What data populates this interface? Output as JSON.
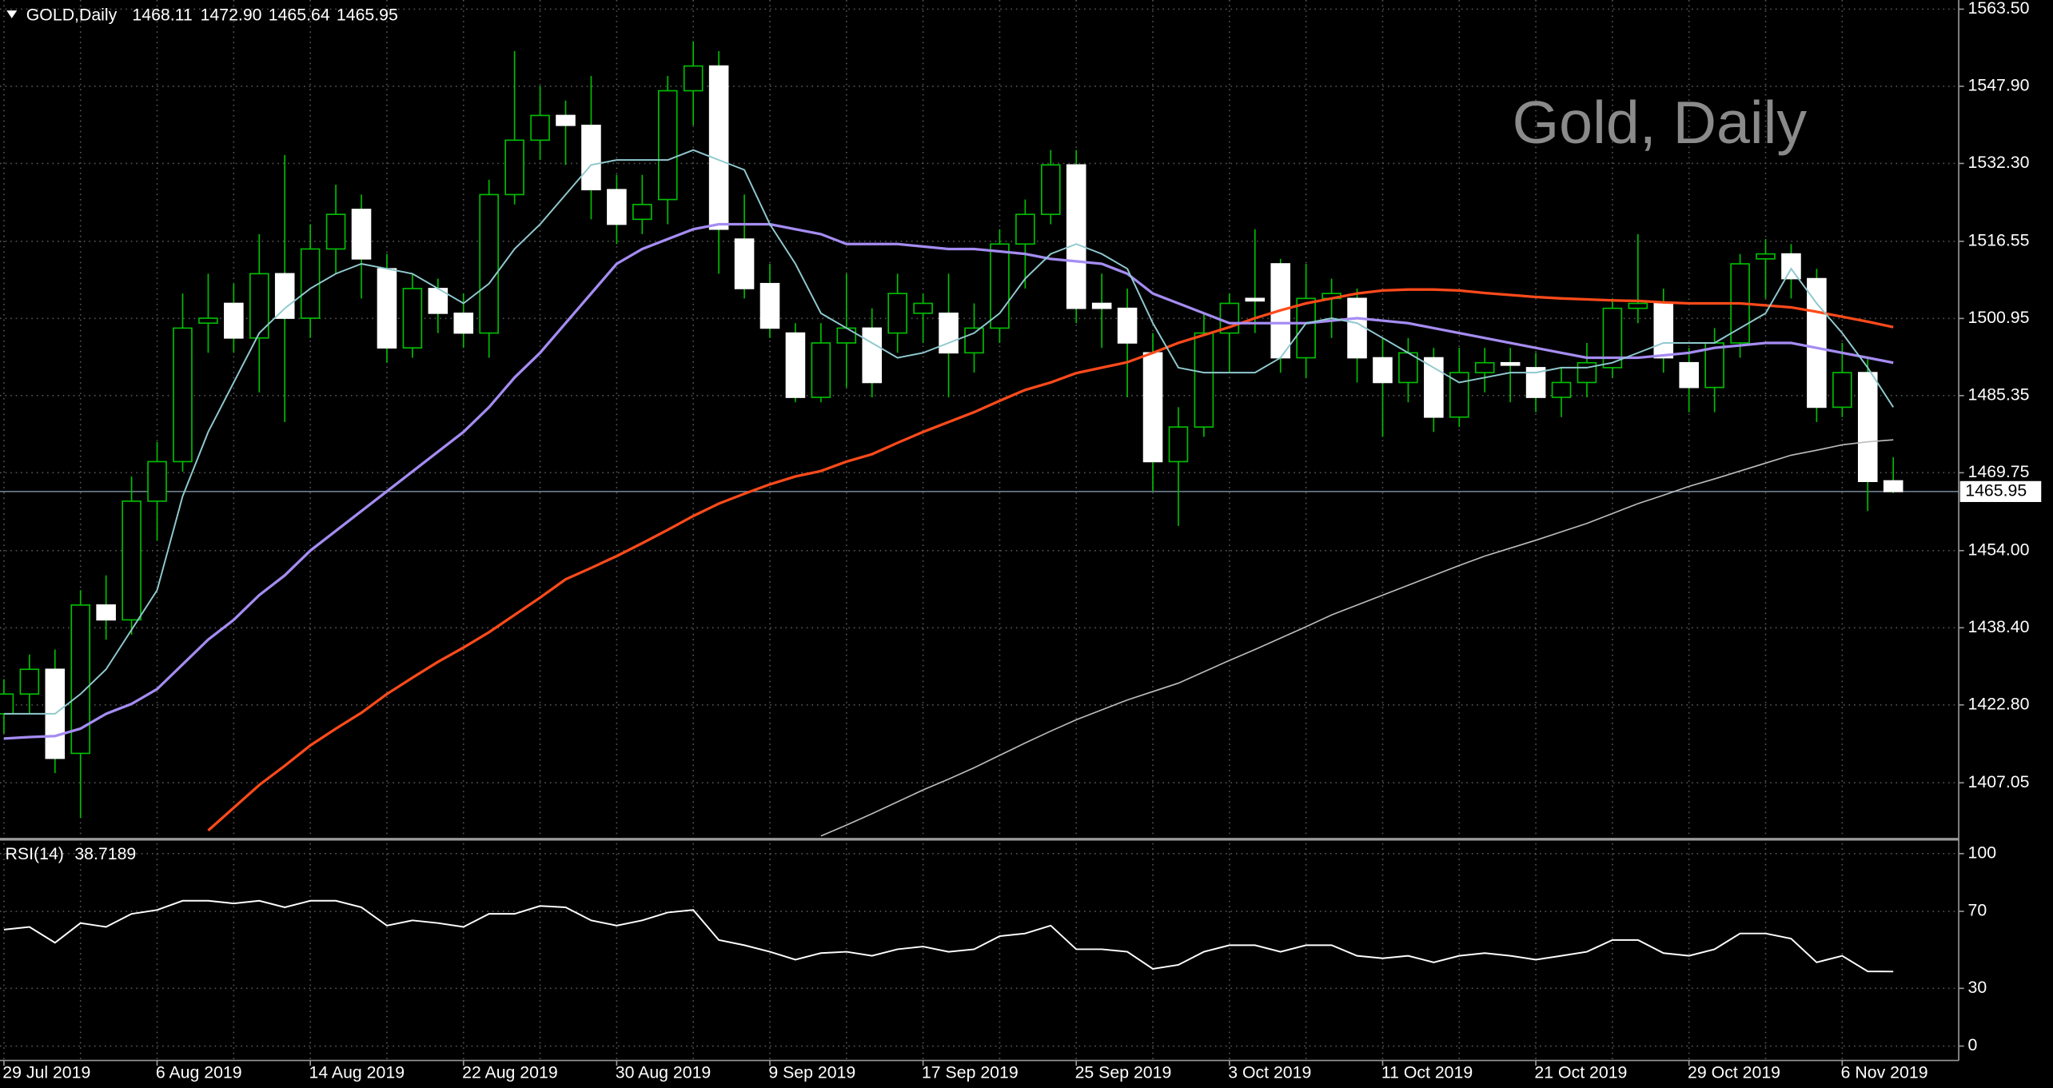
{
  "chart_data": [
    {
      "type": "candlestick",
      "title": "Gold, Daily",
      "symbol": "GOLD,Daily",
      "header_values": [
        "1468.11",
        "1472.90",
        "1465.64",
        "1465.95"
      ],
      "categories": [
        "29 Jul 2019",
        null,
        null,
        null,
        null,
        null,
        "6 Aug 2019",
        null,
        null,
        null,
        null,
        null,
        "14 Aug 2019",
        null,
        null,
        null,
        null,
        null,
        "22 Aug 2019",
        null,
        null,
        null,
        null,
        null,
        "30 Aug 2019",
        null,
        null,
        null,
        null,
        null,
        "9 Sep 2019",
        null,
        null,
        null,
        null,
        null,
        "17 Sep 2019",
        null,
        null,
        null,
        null,
        null,
        "25 Sep 2019",
        null,
        null,
        null,
        null,
        null,
        "3 Oct 2019",
        null,
        null,
        null,
        null,
        null,
        "11 Oct 2019",
        null,
        null,
        null,
        null,
        null,
        "21 Oct 2019",
        null,
        null,
        null,
        null,
        null,
        "29 Oct 2019",
        null,
        null,
        null,
        null,
        null,
        "6 Nov 2019",
        null,
        null
      ],
      "open": [
        1421,
        1425,
        1430,
        1413,
        1443,
        1440,
        1464,
        1472,
        1500,
        1504,
        1497,
        1510,
        1501,
        1515,
        1523,
        1511,
        1495,
        1507,
        1502,
        1498,
        1526,
        1537,
        1542,
        1540,
        1527,
        1521,
        1525,
        1547,
        1552,
        1517,
        1508,
        1498,
        1485,
        1496,
        1499,
        1498,
        1502,
        1502,
        1494,
        1499,
        1516,
        1522,
        1532,
        1504,
        1503,
        1494,
        1472,
        1479,
        1498,
        1505,
        1512,
        1493,
        1505,
        1505,
        1493,
        1488,
        1493,
        1481,
        1490,
        1492,
        1491,
        1485,
        1488,
        1491,
        1503,
        1504,
        1492,
        1487,
        1496,
        1513,
        1514,
        1509,
        1483,
        1490,
        1468.11
      ],
      "high": [
        1428,
        1433,
        1434,
        1446,
        1449,
        1469,
        1476,
        1506,
        1510,
        1508,
        1518,
        1534,
        1520,
        1528,
        1526,
        1514,
        1510,
        1509,
        1506,
        1529,
        1555,
        1548,
        1545,
        1550,
        1530,
        1530,
        1550,
        1557,
        1555,
        1526,
        1512,
        1500,
        1500,
        1510,
        1503,
        1510,
        1506,
        1510,
        1504,
        1519,
        1525,
        1535,
        1535,
        1510,
        1507,
        1498,
        1483,
        1502,
        1506,
        1519,
        1513,
        1512,
        1509,
        1507,
        1497,
        1497,
        1495,
        1495,
        1495,
        1495,
        1494,
        1491,
        1496,
        1505,
        1518,
        1507,
        1495,
        1499,
        1514,
        1517,
        1516,
        1511,
        1496,
        1493,
        1472.9
      ],
      "low": [
        1417,
        1421,
        1409,
        1400,
        1436,
        1437,
        1456,
        1470,
        1494,
        1494,
        1486,
        1480,
        1497,
        1510,
        1505,
        1492,
        1493,
        1498,
        1495,
        1493,
        1524,
        1533,
        1532,
        1521,
        1516,
        1518,
        1520,
        1540,
        1510,
        1505,
        1497,
        1484,
        1484,
        1487,
        1485,
        1494,
        1496,
        1485,
        1490,
        1496,
        1507,
        1520,
        1500,
        1495,
        1485,
        1466,
        1459,
        1477,
        1490,
        1498,
        1490,
        1489,
        1497,
        1488,
        1477,
        1484,
        1478,
        1479,
        1486,
        1484,
        1482,
        1481,
        1485,
        1489,
        1500,
        1490,
        1482,
        1482,
        1493,
        1505,
        1505,
        1480,
        1481,
        1462,
        1465.64
      ],
      "close": [
        1425,
        1430,
        1412,
        1443,
        1440,
        1464,
        1472,
        1499,
        1501,
        1497,
        1510,
        1501,
        1515,
        1522,
        1513,
        1495,
        1507,
        1502,
        1498,
        1526,
        1537,
        1542,
        1540,
        1527,
        1520,
        1524,
        1547,
        1552,
        1519,
        1507,
        1499,
        1485,
        1496,
        1499,
        1488,
        1506,
        1504,
        1494,
        1499,
        1516,
        1522,
        1532,
        1503,
        1503,
        1496,
        1472,
        1479,
        1498,
        1504,
        1504.5,
        1493,
        1505,
        1506,
        1493,
        1488,
        1494,
        1481,
        1490,
        1492,
        1491.5,
        1485,
        1488,
        1492,
        1503,
        1504,
        1493,
        1487,
        1496,
        1512,
        1514,
        1509,
        1483,
        1490,
        1468,
        1465.95
      ],
      "up_color": "#000000",
      "down_color": "#ffffff",
      "wick_color": "#00c000",
      "series": [
        {
          "color": "#ff4a1a",
          "values": [
            null,
            null,
            null,
            null,
            null,
            null,
            null,
            null,
            1397.4,
            1402,
            1406.6,
            1410.5,
            1414.6,
            1418,
            1421.2,
            1425,
            1428.3,
            1431.5,
            1434.4,
            1437.5,
            1441,
            1444.5,
            1448.2,
            1450.5,
            1452.9,
            1455.5,
            1458.2,
            1461,
            1463.5,
            1465.5,
            1467.4,
            1469,
            1470.1,
            1472,
            1473.5,
            1475.8,
            1478,
            1480,
            1482,
            1484.3,
            1486.5,
            1488,
            1489.9,
            1491,
            1492.1,
            1494,
            1496,
            1497.6,
            1499.2,
            1501,
            1502.6,
            1504,
            1505,
            1506,
            1506.6,
            1506.8,
            1506.8,
            1506.6,
            1506.1,
            1505.7,
            1505.3,
            1505,
            1504.8,
            1504.6,
            1504.5,
            1504.2,
            1504,
            1504,
            1504,
            1503.6,
            1503.2,
            1502.3,
            1501.3,
            1500.3,
            1499.2
          ]
        },
        {
          "color": "#bdbdbd",
          "values": [
            null,
            null,
            null,
            null,
            null,
            null,
            null,
            null,
            null,
            null,
            null,
            null,
            null,
            null,
            null,
            null,
            null,
            null,
            null,
            null,
            null,
            null,
            null,
            null,
            null,
            null,
            null,
            null,
            null,
            null,
            null,
            null,
            1396.3,
            1398.5,
            1400.8,
            1403.2,
            1405.6,
            1407.8,
            1410.1,
            1412.6,
            1415.1,
            1417.5,
            1419.8,
            1421.8,
            1423.8,
            1425.5,
            1427.2,
            1429.5,
            1431.8,
            1434,
            1436.3,
            1438.6,
            1441,
            1443,
            1445,
            1447,
            1449,
            1451,
            1452.9,
            1454.5,
            1456.1,
            1457.8,
            1459.5,
            1461.5,
            1463.5,
            1465.2,
            1467,
            1468.5,
            1470.1,
            1471.7,
            1473.3,
            1474.3,
            1475.4,
            1476,
            1476.4
          ]
        },
        {
          "color": "#a58cf2",
          "values": [
            1416,
            1416.3,
            1416.5,
            1418,
            1421,
            1423,
            1426,
            1431,
            1436,
            1440,
            1445,
            1449,
            1454,
            1458,
            1462,
            1466,
            1470,
            1474,
            1478,
            1483,
            1489,
            1494,
            1500,
            1506,
            1512,
            1515,
            1517,
            1519,
            1520,
            1520,
            1520,
            1519,
            1518,
            1516,
            1516,
            1516,
            1515.5,
            1515,
            1515,
            1514.5,
            1514,
            1513,
            1512.5,
            1512,
            1510,
            1506,
            1504,
            1502,
            1500,
            1500,
            1500,
            1500,
            1500.5,
            1501,
            1500.5,
            1500,
            1499,
            1498,
            1497,
            1496,
            1495,
            1494,
            1493,
            1493,
            1493,
            1493.5,
            1494,
            1495,
            1495.5,
            1496,
            1496,
            1495,
            1494,
            1493,
            1492
          ]
        },
        {
          "color": "#8fc9cf",
          "values": [
            1421,
            1421,
            1421,
            1425,
            1430,
            1438,
            1446,
            1465,
            1478,
            1488,
            1498,
            1503,
            1507,
            1510,
            1512,
            1511,
            1510,
            1507,
            1504,
            1508,
            1515,
            1520,
            1526,
            1532,
            1533,
            1533,
            1533,
            1535,
            1533,
            1531,
            1520,
            1512,
            1502,
            1499,
            1496,
            1493,
            1494,
            1496,
            1498,
            1502,
            1509,
            1514,
            1516,
            1514,
            1511,
            1500,
            1491,
            1490,
            1490,
            1490,
            1493,
            1500,
            1501,
            1500,
            1497,
            1494,
            1491,
            1488,
            1489,
            1490,
            1490,
            1491,
            1491,
            1492,
            1494,
            1496,
            1496,
            1496,
            1499,
            1502,
            1511,
            1504,
            1498,
            1491,
            1483
          ]
        }
      ],
      "ylim": [
        1395.9,
        1565.35
      ],
      "yticks": [
        {
          "value": 1563.5,
          "label": "1563.50"
        },
        {
          "value": 1547.9,
          "label": "1547.90"
        },
        {
          "value": 1532.3,
          "label": "1532.30"
        },
        {
          "value": 1516.55,
          "label": "1516.55"
        },
        {
          "value": 1500.95,
          "label": "1500.95"
        },
        {
          "value": 1485.35,
          "label": "1485.35"
        },
        {
          "value": 1469.75,
          "label": "1469.75"
        },
        {
          "value": 1454,
          "label": "1454.00"
        },
        {
          "value": 1438.4,
          "label": "1438.40"
        },
        {
          "value": 1422.8,
          "label": "1422.80"
        },
        {
          "value": 1407.05,
          "label": "1407.05"
        }
      ],
      "grid": true
    },
    {
      "type": "line",
      "title": "RSI(14)",
      "color": "#ffffff",
      "values": [
        60.5,
        61.9,
        53.7,
        63.9,
        61.9,
        68.7,
        70.7,
        75.5,
        75.5,
        74.1,
        75.5,
        72.1,
        75.5,
        75.5,
        72.1,
        62.6,
        65.3,
        63.9,
        61.9,
        68.7,
        68.7,
        72.8,
        72.1,
        65.3,
        62.6,
        65.3,
        69.4,
        70.7,
        55.1,
        52.4,
        49.0,
        44.9,
        48.3,
        49.0,
        46.9,
        50.3,
        51.7,
        49.0,
        50.3,
        57.1,
        58.5,
        62.6,
        50.3,
        50.3,
        49.0,
        40.1,
        42.2,
        49.0,
        52.4,
        52.4,
        49.0,
        52.4,
        52.4,
        46.9,
        45.6,
        46.9,
        43.5,
        46.9,
        48.3,
        46.9,
        44.9,
        46.9,
        49.0,
        55.1,
        55.1,
        48.3,
        46.9,
        50.3,
        58.5,
        58.5,
        55.8,
        43.5,
        46.9,
        38.8,
        38.7189
      ],
      "ylim": [
        -7.5,
        106.1
      ],
      "yticks": [
        100,
        70,
        30,
        0
      ],
      "grid": true
    }
  ]
}
